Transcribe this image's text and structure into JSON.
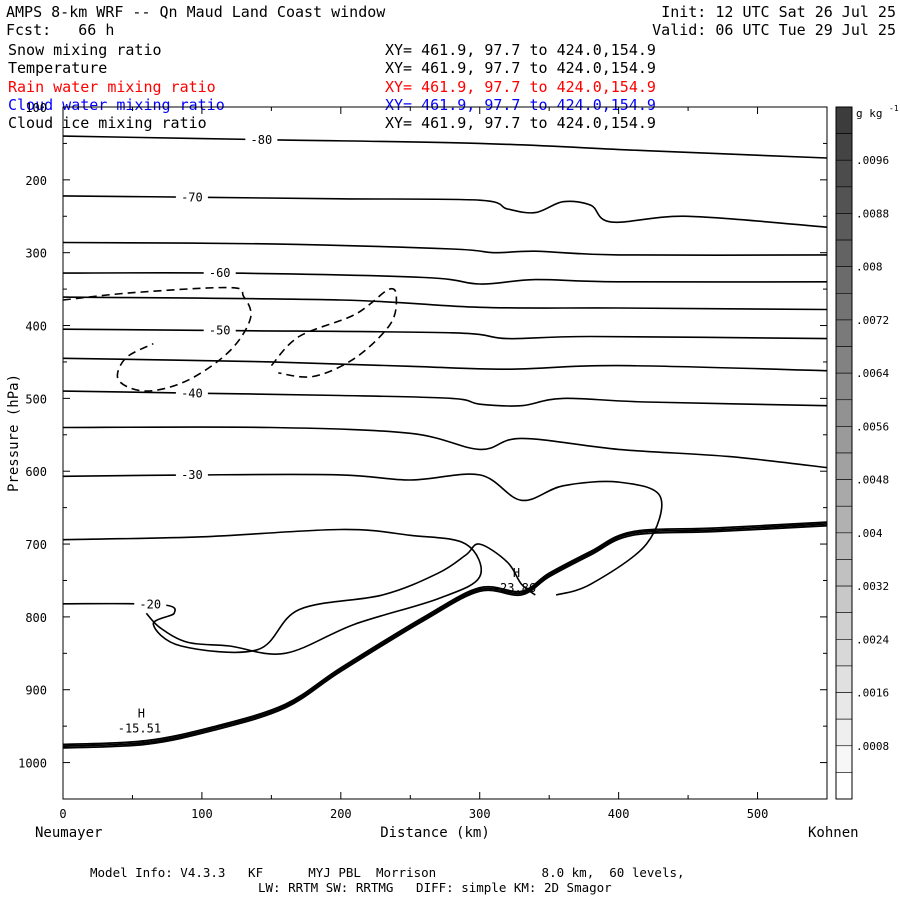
{
  "header": {
    "title": "AMPS 8-km WRF -- Qn Maud Land Coast window",
    "init": "Init: 12 UTC Sat 26 Jul 25",
    "fcst": "Fcst:   66 h",
    "valid": "Valid: 06 UTC Tue 29 Jul 25",
    "fields": [
      {
        "name": "Snow mixing ratio",
        "xy": "XY= 461.9, 97.7 to 424.0,154.9",
        "color": "#000000"
      },
      {
        "name": "Temperature",
        "xy": "XY= 461.9, 97.7 to 424.0,154.9",
        "color": "#000000"
      },
      {
        "name": "Rain water mixing ratio",
        "xy": "XY= 461.9, 97.7 to 424.0,154.9",
        "color": "#ff0000"
      },
      {
        "name": "Cloud water mixing ratio",
        "xy": "XY= 461.9, 97.7 to 424.0,154.9",
        "color": "#0000ff"
      },
      {
        "name": "Cloud ice mixing ratio",
        "xy": "XY= 461.9, 97.7 to 424.0,154.9",
        "color": "#000000"
      }
    ]
  },
  "chart_data": {
    "type": "line",
    "xlabel": "Distance (km)",
    "ylabel": "Pressure (hPa)",
    "xlim": [
      0,
      550
    ],
    "ylim": [
      1050,
      100
    ],
    "x_ticks": [
      "0",
      "100",
      "200",
      "300",
      "400",
      "500"
    ],
    "y_ticks": [
      "100",
      "200",
      "300",
      "400",
      "500",
      "600",
      "700",
      "800",
      "900",
      "1000"
    ],
    "x_end_left": "Neumayer",
    "x_end_right": "Kohnen",
    "colorbar_unit": "g kg",
    "colorbar_unit_sup": "-1",
    "colorbar_labels": [
      ".0096",
      ".0088",
      ".008",
      ".0072",
      ".0064",
      ".0056",
      ".0048",
      ".004",
      ".0032",
      ".0024",
      ".0016",
      ".0008"
    ],
    "series": [
      {
        "name": "Temperature",
        "color": "#000000",
        "contours": [
          {
            "label": "-80",
            "points": [
              [
                0,
                140
              ],
              [
                150,
                145
              ],
              [
                300,
                150
              ],
              [
                420,
                160
              ],
              [
                550,
                170
              ]
            ]
          },
          {
            "label": "-70",
            "points": [
              [
                0,
                222
              ],
              [
                100,
                224
              ],
              [
                200,
                226
              ],
              [
                300,
                228
              ],
              [
                320,
                240
              ],
              [
                340,
                245
              ],
              [
                360,
                230
              ],
              [
                380,
                235
              ],
              [
                395,
                258
              ],
              [
                450,
                250
              ],
              [
                550,
                265
              ]
            ]
          },
          {
            "label": "",
            "points": [
              [
                0,
                286
              ],
              [
                150,
                288
              ],
              [
                280,
                295
              ],
              [
                310,
                300
              ],
              [
                340,
                298
              ],
              [
                400,
                303
              ],
              [
                550,
                303
              ]
            ]
          },
          {
            "label": "-60",
            "points": [
              [
                0,
                328
              ],
              [
                120,
                328
              ],
              [
                260,
                334
              ],
              [
                300,
                343
              ],
              [
                340,
                337
              ],
              [
                400,
                340
              ],
              [
                550,
                340
              ]
            ]
          },
          {
            "label": "",
            "points": [
              [
                0,
                361
              ],
              [
                200,
                365
              ],
              [
                300,
                375
              ],
              [
                400,
                376
              ],
              [
                550,
                378
              ]
            ]
          },
          {
            "label": "-50",
            "points": [
              [
                0,
                405
              ],
              [
                120,
                407
              ],
              [
                280,
                410
              ],
              [
                320,
                418
              ],
              [
                380,
                415
              ],
              [
                550,
                418
              ]
            ]
          },
          {
            "label": "",
            "points": [
              [
                0,
                445
              ],
              [
                150,
                450
              ],
              [
                250,
                456
              ],
              [
                320,
                460
              ],
              [
                400,
                455
              ],
              [
                550,
                462
              ]
            ]
          },
          {
            "label": "-40",
            "points": [
              [
                0,
                490
              ],
              [
                100,
                493
              ],
              [
                200,
                496
              ],
              [
                280,
                500
              ],
              [
                300,
                508
              ],
              [
                330,
                510
              ],
              [
                360,
                500
              ],
              [
                420,
                505
              ],
              [
                550,
                510
              ]
            ]
          },
          {
            "label": "",
            "points": [
              [
                0,
                540
              ],
              [
                150,
                540
              ],
              [
                250,
                548
              ],
              [
                300,
                570
              ],
              [
                330,
                555
              ],
              [
                400,
                570
              ],
              [
                480,
                580
              ],
              [
                550,
                595
              ]
            ]
          },
          {
            "label": "-30",
            "points": [
              [
                0,
                607
              ],
              [
                100,
                605
              ],
              [
                200,
                605
              ],
              [
                250,
                612
              ],
              [
                300,
                605
              ],
              [
                330,
                640
              ],
              [
                360,
                620
              ],
              [
                400,
                615
              ],
              [
                430,
                635
              ],
              [
                420,
                700
              ],
              [
                380,
                755
              ],
              [
                355,
                770
              ]
            ]
          },
          {
            "label": "-20",
            "points": [
              [
                0,
                782
              ],
              [
                70,
                783
              ],
              [
                80,
                795
              ],
              [
                65,
                810
              ],
              [
                85,
                840
              ],
              [
                140,
                845
              ],
              [
                170,
                790
              ],
              [
                230,
                770
              ],
              [
                270,
                740
              ],
              [
                290,
                715
              ],
              [
                300,
                700
              ],
              [
                320,
                725
              ],
              [
                330,
                755
              ],
              [
                340,
                770
              ]
            ]
          },
          {
            "label": "",
            "points": [
              [
                0,
                694
              ],
              [
                100,
                690
              ],
              [
                200,
                680
              ],
              [
                250,
                688
              ],
              [
                290,
                700
              ],
              [
                300,
                745
              ],
              [
                270,
                775
              ],
              [
                210,
                810
              ],
              [
                160,
                850
              ],
              [
                120,
                840
              ],
              [
                90,
                835
              ],
              [
                70,
                815
              ],
              [
                60,
                795
              ]
            ]
          }
        ]
      },
      {
        "name": "Snow mixing ratio",
        "color": "#000000",
        "contours": [
          {
            "label": "",
            "points": [
              [
                0,
                365
              ],
              [
                50,
                355
              ],
              [
                120,
                348
              ],
              [
                130,
                360
              ],
              [
                135,
                390
              ],
              [
                120,
                435
              ],
              [
                90,
                475
              ],
              [
                60,
                490
              ],
              [
                40,
                475
              ],
              [
                45,
                445
              ],
              [
                65,
                425
              ]
            ]
          },
          {
            "label": "",
            "points": [
              [
                150,
                455
              ],
              [
                170,
                415
              ],
              [
                210,
                385
              ],
              [
                235,
                350
              ],
              [
                240,
                365
              ],
              [
                235,
                400
              ],
              [
                210,
                445
              ],
              [
                180,
                470
              ],
              [
                155,
                465
              ]
            ]
          }
        ]
      }
    ],
    "terrain": [
      [
        0,
        975
      ],
      [
        60,
        970
      ],
      [
        110,
        950
      ],
      [
        160,
        920
      ],
      [
        200,
        870
      ],
      [
        260,
        800
      ],
      [
        300,
        760
      ],
      [
        330,
        765
      ],
      [
        350,
        740
      ],
      [
        380,
        710
      ],
      [
        410,
        683
      ],
      [
        470,
        678
      ],
      [
        550,
        670
      ]
    ],
    "annotations": [
      {
        "text": "H",
        "value": "-15.51",
        "x": 55,
        "p": 938
      },
      {
        "text": "H",
        "value": "-23.86",
        "x": 325,
        "p": 745
      }
    ]
  },
  "footer": {
    "line1": "Model Info: V4.3.3   KF      MYJ PBL  Morrison              8.0 km,  60 levels,",
    "line2": "LW: RRTM SW: RRTMG   DIFF: simple KM: 2D Smagor"
  }
}
